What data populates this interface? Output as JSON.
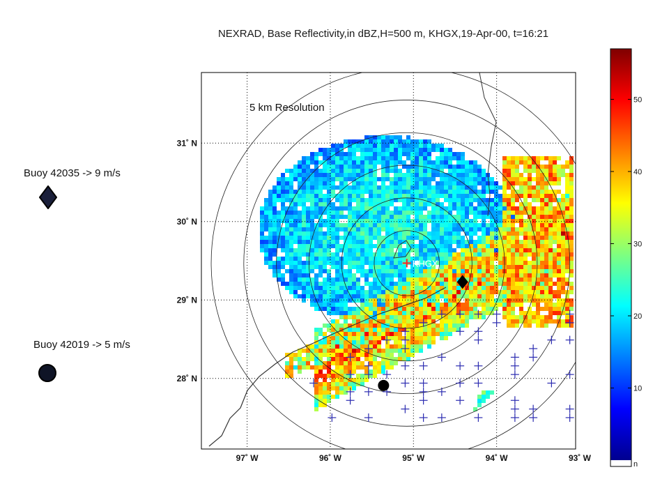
{
  "title": "NEXRAD, Base Reflectivity,in dBZ,H=500 m, KHGX,19-Apr-00, t=16:21",
  "resolution_label": "5 km Resolution",
  "buoys": [
    {
      "label": "Buoy 42035 -> 9 m/s",
      "marker": "diamond-icon",
      "lon": -94.41,
      "lat": 29.23
    },
    {
      "label": "Buoy 42019 -> 5 m/s",
      "marker": "circle-icon",
      "lon": -95.36,
      "lat": 27.91
    }
  ],
  "radar": {
    "label": "KHGX",
    "lon": -95.08,
    "lat": 29.47
  },
  "colors": {
    "colormap": [
      "#00008f",
      "#0000ff",
      "#007fff",
      "#00ffff",
      "#7fff7f",
      "#ffff00",
      "#ff7f00",
      "#ff0000",
      "#7f0000"
    ],
    "marker": "#000000",
    "plus": "#2b2bb0",
    "coast": "#333333"
  },
  "chart_data": {
    "type": "heatmap",
    "title": "NEXRAD, Base Reflectivity,in dBZ,H=500 m, KHGX,19-Apr-00, t=16:21",
    "xlabel": "",
    "ylabel": "",
    "x_ticks": [
      {
        "value": -97,
        "label": "97˚ W"
      },
      {
        "value": -96,
        "label": "96˚ W"
      },
      {
        "value": -95,
        "label": "95˚ W"
      },
      {
        "value": -94,
        "label": "94˚ W"
      },
      {
        "value": -93,
        "label": "93˚ W"
      }
    ],
    "y_ticks": [
      {
        "value": 28,
        "label": "28˚ N"
      },
      {
        "value": 29,
        "label": "29˚ N"
      },
      {
        "value": 30,
        "label": "30˚ N"
      },
      {
        "value": 31,
        "label": "31˚ N"
      }
    ],
    "xlim": [
      -97.55,
      -93.05
    ],
    "ylim": [
      27.1,
      31.9
    ],
    "colorbar": {
      "range": [
        0,
        57
      ],
      "ticks": [
        10,
        20,
        30,
        40,
        50
      ],
      "nodata_label": "n"
    },
    "rings_km": [
      50,
      100,
      150,
      200,
      250,
      300
    ],
    "regions": [
      {
        "name": "north-blue-echo",
        "dbz": 14,
        "lon": [
          -95.0
        ],
        "lat": [
          30.0
        ]
      },
      {
        "name": "squall-line-band",
        "dbz": 40
      }
    ],
    "grid": true
  }
}
